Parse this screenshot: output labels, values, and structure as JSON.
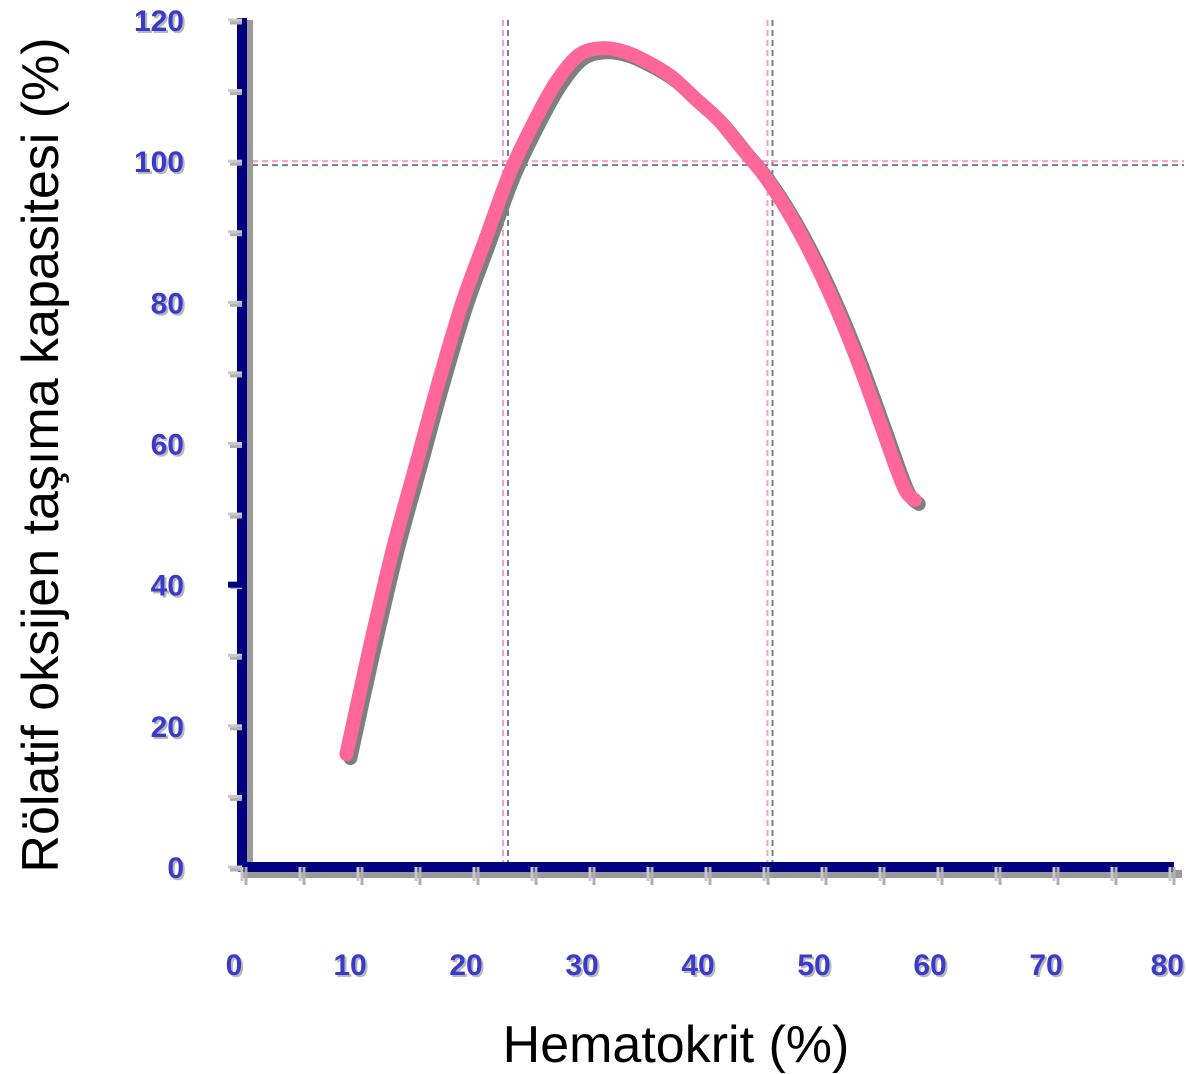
{
  "chart_data": {
    "type": "line",
    "xlabel": "Hematokrit (%)",
    "ylabel": "Rölatif oksijen taşıma kapasitesi (%)",
    "xlim": [
      0,
      80
    ],
    "ylim": [
      0,
      120
    ],
    "xticks": [
      "0",
      "10",
      "20",
      "30",
      "40",
      "50",
      "60",
      "70",
      "80"
    ],
    "yticks": [
      "0",
      "20",
      "40",
      "60",
      "80",
      "100",
      "120"
    ],
    "grid": false,
    "series": [
      {
        "x": [
          9,
          11,
          13,
          15,
          17,
          19,
          21,
          23,
          25,
          27,
          29,
          31,
          33,
          35,
          37,
          39,
          41,
          43,
          45,
          47,
          49,
          51,
          53,
          55,
          57,
          58
        ],
        "values": [
          16,
          31,
          45,
          57,
          69,
          80,
          89,
          98,
          105,
          111,
          115,
          116,
          115.5,
          114,
          112,
          109,
          106,
          102,
          98,
          93,
          87,
          80,
          72,
          63,
          54,
          52
        ]
      }
    ],
    "reference_lines": [
      {
        "axis": "x",
        "value": 22.5
      },
      {
        "axis": "x",
        "value": 45.3
      },
      {
        "axis": "y",
        "value": 100
      }
    ],
    "colors": {
      "curve": "#ff6699",
      "curve_shadow": "#7f7f7f",
      "axis": "#000080",
      "ticks": "#3a3acb",
      "ref_pink": "#ff99cc",
      "ref_grey": "#7f7f7f"
    }
  }
}
